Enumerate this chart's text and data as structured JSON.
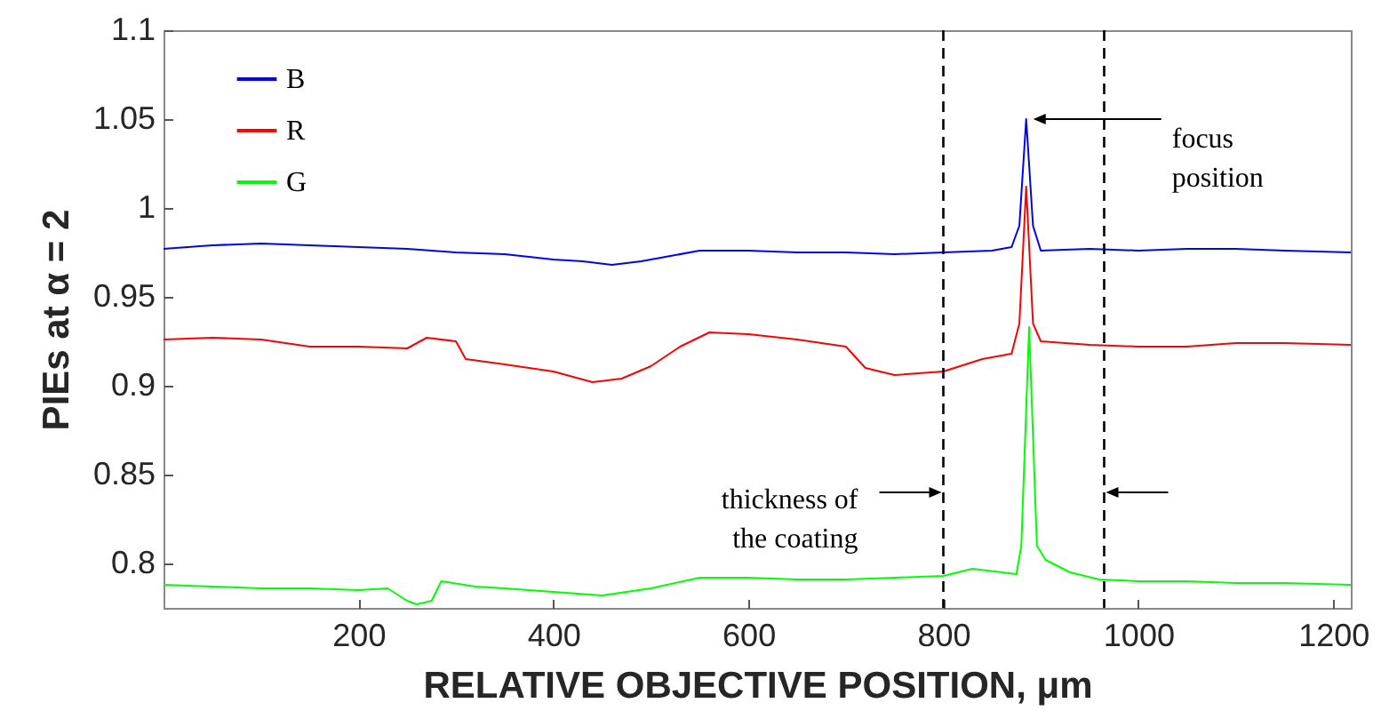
{
  "chart_data": {
    "type": "line",
    "xlabel": "RELATIVE OBJECTIVE POSITION, μm",
    "ylabel": "PIEs at α = 2",
    "xlim": [
      0,
      1218
    ],
    "xticks": [
      200,
      400,
      600,
      800,
      1000,
      1200
    ],
    "ylim": [
      0.775,
      1.1
    ],
    "yticks": [
      0.8,
      0.85,
      0.9,
      0.95,
      1,
      1.05,
      1.1
    ],
    "grid": false,
    "legend": "top left",
    "line_style": "solid",
    "marker": "none",
    "series": [
      {
        "name": "B",
        "color": "#0000ff",
        "x": [
          0,
          50,
          100,
          150,
          200,
          250,
          300,
          350,
          400,
          430,
          460,
          490,
          520,
          550,
          600,
          650,
          700,
          750,
          800,
          850,
          870,
          878,
          885,
          892,
          900,
          950,
          1000,
          1050,
          1100,
          1150,
          1218
        ],
        "values": [
          0.977,
          0.979,
          0.98,
          0.979,
          0.978,
          0.977,
          0.975,
          0.974,
          0.971,
          0.97,
          0.968,
          0.97,
          0.973,
          0.976,
          0.976,
          0.975,
          0.975,
          0.974,
          0.975,
          0.976,
          0.978,
          0.99,
          1.05,
          0.99,
          0.976,
          0.977,
          0.976,
          0.977,
          0.977,
          0.976,
          0.975
        ]
      },
      {
        "name": "R",
        "color": "#ff0000",
        "x": [
          0,
          50,
          100,
          150,
          200,
          250,
          270,
          300,
          310,
          350,
          400,
          440,
          470,
          500,
          530,
          560,
          600,
          650,
          700,
          720,
          750,
          800,
          840,
          870,
          878,
          885,
          892,
          900,
          950,
          1000,
          1050,
          1100,
          1150,
          1218
        ],
        "values": [
          0.926,
          0.927,
          0.926,
          0.922,
          0.922,
          0.921,
          0.927,
          0.925,
          0.915,
          0.912,
          0.908,
          0.902,
          0.904,
          0.911,
          0.922,
          0.93,
          0.929,
          0.926,
          0.922,
          0.91,
          0.906,
          0.908,
          0.915,
          0.918,
          0.935,
          1.012,
          0.935,
          0.925,
          0.923,
          0.922,
          0.922,
          0.924,
          0.924,
          0.923
        ]
      },
      {
        "name": "G",
        "color": "#00ff00",
        "x": [
          0,
          50,
          100,
          150,
          200,
          230,
          250,
          260,
          275,
          285,
          320,
          350,
          400,
          450,
          500,
          550,
          600,
          650,
          700,
          750,
          800,
          830,
          860,
          875,
          880,
          888,
          896,
          905,
          930,
          960,
          1000,
          1050,
          1100,
          1150,
          1218
        ],
        "values": [
          0.788,
          0.787,
          0.786,
          0.786,
          0.785,
          0.786,
          0.779,
          0.777,
          0.779,
          0.79,
          0.787,
          0.786,
          0.784,
          0.782,
          0.786,
          0.792,
          0.792,
          0.791,
          0.791,
          0.792,
          0.793,
          0.797,
          0.795,
          0.794,
          0.81,
          0.933,
          0.81,
          0.802,
          0.795,
          0.791,
          0.79,
          0.79,
          0.789,
          0.789,
          0.788
        ]
      }
    ],
    "ref_lines": [
      {
        "axis": "x",
        "value": 800,
        "color": "#000000",
        "line_style": "dashed"
      },
      {
        "axis": "x",
        "value": 965,
        "color": "#000000",
        "line_style": "dashed"
      }
    ],
    "annotations": [
      "focus\nposition",
      {
        "text": "thickness of\nthe coating",
        "x": 800,
        "y": 0.84
      }
    ]
  }
}
